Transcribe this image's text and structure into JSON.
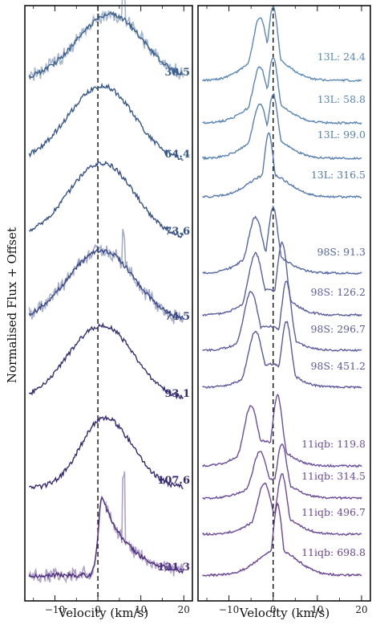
{
  "chart_data": [
    {
      "type": "line",
      "panel": "left",
      "xlabel": "Velocity (km/s)",
      "ylabel": "Normalised Flux + Offset",
      "xlim": [
        -17,
        22
      ],
      "xticks": [
        -10,
        0,
        10,
        20
      ],
      "xtick_labels": [
        "−10",
        "0",
        "10",
        "20"
      ],
      "reference_line_x": 0,
      "grid": false,
      "series": [
        {
          "label": "38.5",
          "color": "#3b5f8f",
          "peak_velocity": 3,
          "shape": "broad",
          "noisy_overlay": true
        },
        {
          "label": "64.4",
          "color": "#36578a",
          "peak_velocity": 1,
          "shape": "broad"
        },
        {
          "label": "73.6",
          "color": "#344f85",
          "peak_velocity": 1,
          "shape": "broad"
        },
        {
          "label": "74.5",
          "color": "#3a4a88",
          "peak_velocity": 1,
          "shape": "broad",
          "noisy_overlay": true
        },
        {
          "label": "93.1",
          "color": "#332f72",
          "peak_velocity": 1,
          "shape": "broad"
        },
        {
          "label": "107.6",
          "color": "#35286e",
          "peak_velocity": 1.5,
          "shape": "medium"
        },
        {
          "label": "121.3",
          "color": "#4f3080",
          "peak_velocity": 1,
          "shape": "steep",
          "noisy_overlay": true
        }
      ]
    },
    {
      "type": "line",
      "panel": "right",
      "xlabel": "Velocity (km/s)",
      "xlim": [
        -17,
        22
      ],
      "xticks": [
        -10,
        0,
        10,
        20
      ],
      "xtick_labels": [
        "−10",
        "0",
        "10",
        "20"
      ],
      "reference_line_x": 0,
      "grid": false,
      "series": [
        {
          "label": "13L: 24.4",
          "color": "#5b89b7",
          "peaks": [
            -3,
            0
          ]
        },
        {
          "label": "13L: 58.8",
          "color": "#5a85b5",
          "peaks": [
            -3,
            0
          ]
        },
        {
          "label": "13L: 99.0",
          "color": "#5880b2",
          "peaks": [
            -3,
            0
          ]
        },
        {
          "label": "13L: 316.5",
          "color": "#5679ad",
          "peaks": [
            -1
          ]
        },
        {
          "label": "98S: 91.3",
          "color": "#5467a5",
          "peaks": [
            -4,
            0
          ]
        },
        {
          "label": "98S: 126.2",
          "color": "#5a5fa0",
          "peaks": [
            -4,
            2
          ]
        },
        {
          "label": "98S: 296.7",
          "color": "#5a5c9e",
          "peaks": [
            -5,
            3
          ]
        },
        {
          "label": "98S: 451.2",
          "color": "#5b5a9c",
          "peaks": [
            -4,
            3
          ]
        },
        {
          "label": "11iqb: 119.8",
          "color": "#6a4f9e",
          "peaks": [
            -5,
            1
          ]
        },
        {
          "label": "11iqb: 314.5",
          "color": "#6b4b9a",
          "peaks": [
            -3,
            2
          ]
        },
        {
          "label": "11iqb: 496.7",
          "color": "#6b4997",
          "peaks": [
            -2,
            2
          ]
        },
        {
          "label": "11iqb: 698.8",
          "color": "#6a4594",
          "peaks": [
            1
          ]
        }
      ]
    }
  ]
}
